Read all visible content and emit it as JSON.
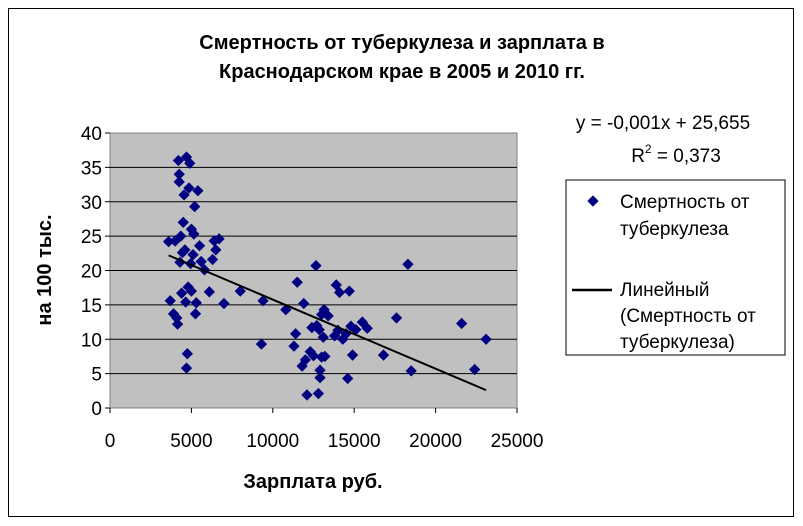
{
  "chart_data": {
    "type": "scatter",
    "title_lines": [
      "Смертность от туберкулеза и зарплата в",
      "Краснодарском крае в 2005 и 2010 гг."
    ],
    "xlabel": "Зарплата руб.",
    "ylabel": "на 100 тыс.",
    "xlim": [
      0,
      25000
    ],
    "ylim": [
      0,
      40
    ],
    "x_ticks": [
      "0",
      "5000",
      "10000",
      "15000",
      "20000",
      "25000"
    ],
    "y_ticks": [
      "0",
      "5",
      "10",
      "15",
      "20",
      "25",
      "30",
      "35",
      "40"
    ],
    "grid": "horizontal",
    "background": "#c0c0c0",
    "marker_color": "#000080",
    "series": [
      {
        "name": "Смертность от туберкулеза",
        "legend_lines": [
          "Смертность от",
          "туберкулеза"
        ],
        "points": [
          [
            3600,
            24.2
          ],
          [
            3700,
            15.6
          ],
          [
            3900,
            13.7
          ],
          [
            4000,
            24.3
          ],
          [
            4100,
            13.1
          ],
          [
            4150,
            12.2
          ],
          [
            4200,
            36.0
          ],
          [
            4250,
            34.0
          ],
          [
            4250,
            32.9
          ],
          [
            4300,
            21.2
          ],
          [
            4350,
            25.0
          ],
          [
            4400,
            16.7
          ],
          [
            4450,
            22.6
          ],
          [
            4500,
            27.0
          ],
          [
            4550,
            31.0
          ],
          [
            4600,
            23.0
          ],
          [
            4650,
            15.4
          ],
          [
            4700,
            36.5
          ],
          [
            4700,
            5.8
          ],
          [
            4750,
            7.9
          ],
          [
            4800,
            17.6
          ],
          [
            4850,
            32.0
          ],
          [
            4900,
            35.6
          ],
          [
            4950,
            21.0
          ],
          [
            5000,
            26.0
          ],
          [
            5000,
            17.0
          ],
          [
            5100,
            22.3
          ],
          [
            5150,
            25.3
          ],
          [
            5200,
            29.3
          ],
          [
            5250,
            13.7
          ],
          [
            5300,
            15.3
          ],
          [
            5400,
            31.6
          ],
          [
            5500,
            23.6
          ],
          [
            5600,
            21.3
          ],
          [
            5800,
            20.1
          ],
          [
            6100,
            16.9
          ],
          [
            6300,
            21.6
          ],
          [
            6400,
            24.3
          ],
          [
            6500,
            23.0
          ],
          [
            6700,
            24.6
          ],
          [
            7000,
            15.2
          ],
          [
            8000,
            17.0
          ],
          [
            9300,
            9.3
          ],
          [
            9400,
            15.6
          ],
          [
            10800,
            14.3
          ],
          [
            11300,
            9.0
          ],
          [
            11400,
            10.8
          ],
          [
            11500,
            18.3
          ],
          [
            11800,
            6.1
          ],
          [
            11900,
            15.2
          ],
          [
            12000,
            7.0
          ],
          [
            12100,
            1.9
          ],
          [
            12300,
            8.2
          ],
          [
            12400,
            11.7
          ],
          [
            12500,
            7.6
          ],
          [
            12650,
            20.7
          ],
          [
            12700,
            12.0
          ],
          [
            12800,
            2.1
          ],
          [
            12850,
            11.4
          ],
          [
            12900,
            5.5
          ],
          [
            12900,
            4.4
          ],
          [
            13000,
            7.4
          ],
          [
            13000,
            13.6
          ],
          [
            13100,
            10.3
          ],
          [
            13150,
            14.3
          ],
          [
            13200,
            7.5
          ],
          [
            13400,
            13.4
          ],
          [
            13800,
            10.5
          ],
          [
            13900,
            17.9
          ],
          [
            14000,
            11.3
          ],
          [
            14100,
            16.8
          ],
          [
            14300,
            10.0
          ],
          [
            14500,
            10.8
          ],
          [
            14600,
            4.3
          ],
          [
            14700,
            17.0
          ],
          [
            14800,
            11.9
          ],
          [
            14900,
            7.7
          ],
          [
            15100,
            11.4
          ],
          [
            15500,
            12.5
          ],
          [
            15800,
            11.6
          ],
          [
            16800,
            7.7
          ],
          [
            17600,
            13.1
          ],
          [
            18300,
            20.9
          ],
          [
            18500,
            5.4
          ],
          [
            21600,
            12.3
          ],
          [
            22400,
            5.6
          ],
          [
            23100,
            10.0
          ]
        ]
      }
    ],
    "trendline": {
      "name_lines": [
        "Линейный",
        "(Смертность от",
        "туберкулеза)"
      ],
      "equation": "y = -0,001x + 25,655",
      "r2_label": "R",
      "r2_sup": "2",
      "r2_value": " = 0,373",
      "x_range": [
        3600,
        23100
      ],
      "y_range": [
        22.2,
        2.6
      ]
    },
    "legend_position": "right"
  }
}
